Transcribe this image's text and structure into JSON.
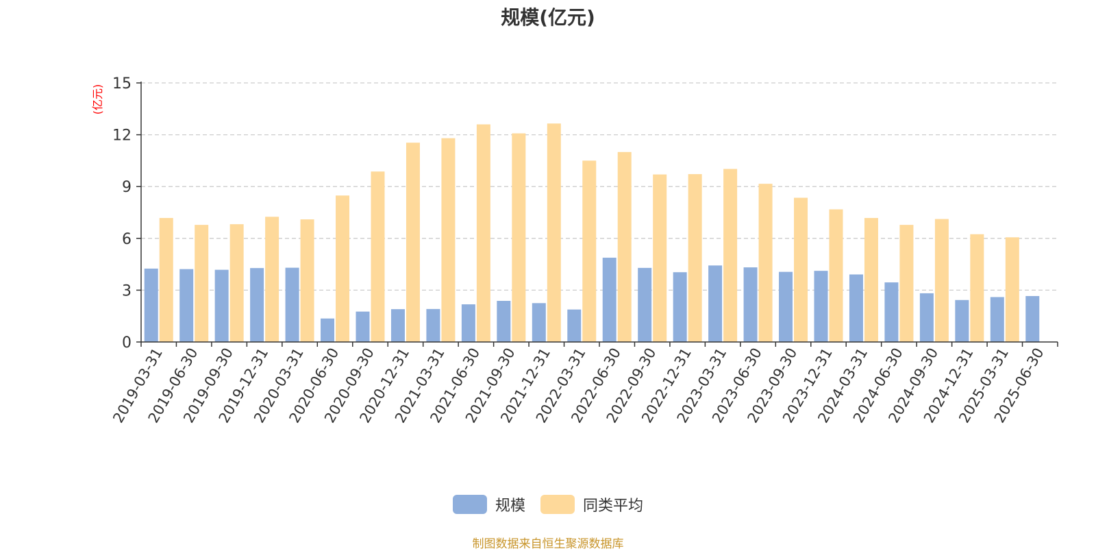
{
  "chart_data": {
    "type": "bar",
    "title": "规模(亿元)",
    "ylabel": "(亿元)",
    "ylim": [
      0,
      15
    ],
    "yticks": [
      0,
      3,
      6,
      9,
      12,
      15
    ],
    "grid": true,
    "legend_position": "bottom",
    "categories": [
      "2019-03-31",
      "2019-06-30",
      "2019-09-30",
      "2019-12-31",
      "2020-03-31",
      "2020-06-30",
      "2020-09-30",
      "2020-12-31",
      "2021-03-31",
      "2021-06-30",
      "2021-09-30",
      "2021-12-31",
      "2022-03-31",
      "2022-06-30",
      "2022-09-30",
      "2022-12-31",
      "2023-03-31",
      "2023-06-30",
      "2023-09-30",
      "2023-12-31",
      "2024-03-31",
      "2024-06-30",
      "2024-09-30",
      "2024-12-31",
      "2025-03-31",
      "2025-06-30"
    ],
    "series": [
      {
        "name": "规模",
        "color": "#8EAEDC",
        "values": [
          4.25,
          4.22,
          4.18,
          4.28,
          4.3,
          1.36,
          1.76,
          1.9,
          1.91,
          2.18,
          2.38,
          2.25,
          1.88,
          4.88,
          4.29,
          4.04,
          4.43,
          4.32,
          4.06,
          4.12,
          3.91,
          3.45,
          2.82,
          2.43,
          2.6,
          2.66
        ]
      },
      {
        "name": "同类平均",
        "color": "#FED99A",
        "values": [
          7.18,
          6.78,
          6.82,
          7.25,
          7.1,
          8.48,
          9.87,
          11.54,
          11.8,
          12.6,
          12.08,
          12.65,
          10.5,
          11.0,
          9.7,
          9.72,
          10.02,
          9.16,
          8.35,
          7.68,
          7.18,
          6.78,
          7.12,
          6.24,
          6.06,
          null
        ]
      }
    ]
  },
  "colors": {
    "axis_label": "#ff0000",
    "source_note": "#c8952b",
    "text": "#333333"
  },
  "source_note": "制图数据来自恒生聚源数据库"
}
